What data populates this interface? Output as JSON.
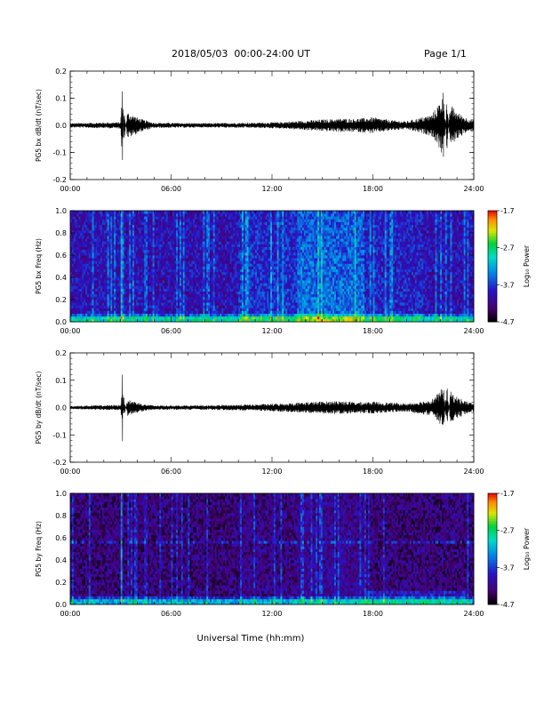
{
  "header": {
    "title": "2018/05/03  00:00-24:00 UT",
    "page": "Page 1/1"
  },
  "xlabel": "Universal Time (hh:mm)",
  "chart_data": [
    {
      "type": "line",
      "ylabel": "PG5 bx dB/dt (nT/sec)",
      "ylim": [
        -0.2,
        0.2
      ],
      "yticks": [
        "0.2",
        "0.1",
        "0.0",
        "-0.1",
        "-0.2"
      ],
      "xticks": [
        "00:00",
        "06:00",
        "12:00",
        "18:00",
        "24:00"
      ],
      "xlim_hours": [
        0,
        24
      ],
      "series": [
        {
          "color": "#000000",
          "x_hours": [
            0,
            3.0,
            3.05,
            3.1,
            3.15,
            3.2,
            3.4,
            3.7,
            4.0,
            4.4,
            5.0,
            8.0,
            11.0,
            12.5,
            14.0,
            16.0,
            17.0,
            18.0,
            19.0,
            20.0,
            21.5,
            22.0,
            22.2,
            22.4,
            22.6,
            23.0,
            23.5,
            24
          ],
          "amplitude": [
            0.008,
            0.012,
            0.1,
            -0.16,
            0.08,
            -0.06,
            0.05,
            0.04,
            0.03,
            0.02,
            0.01,
            0.008,
            0.01,
            0.012,
            0.018,
            0.025,
            0.025,
            0.03,
            0.02,
            0.015,
            0.04,
            0.09,
            0.13,
            -0.1,
            0.08,
            0.05,
            0.03,
            0.02
          ]
        }
      ]
    },
    {
      "type": "heatmap",
      "ylabel": "PG5 bx Freq (Hz)",
      "ylim": [
        0,
        1
      ],
      "yticks": [
        "1.0",
        "0.8",
        "0.6",
        "0.4",
        "0.2",
        "0.0"
      ],
      "xticks": [
        "00:00",
        "06:00",
        "12:00",
        "18:00",
        "24:00"
      ],
      "colorbar": {
        "label": "Log₁₀ Power",
        "ticks": [
          "-1.7",
          "-2.7",
          "-3.7",
          "-4.7"
        ],
        "range": [
          -4.7,
          -1.7
        ]
      }
    },
    {
      "type": "line",
      "ylabel": "PG5 by dB/dt (nT/sec)",
      "ylim": [
        -0.2,
        0.2
      ],
      "yticks": [
        "0.2",
        "0.1",
        "0.0",
        "-0.1",
        "-0.2"
      ],
      "xticks": [
        "00:00",
        "06:00",
        "12:00",
        "18:00",
        "24:00"
      ],
      "xlim_hours": [
        0,
        24
      ],
      "series": [
        {
          "color": "#000000",
          "x_hours": [
            0,
            3.0,
            3.05,
            3.1,
            3.15,
            3.2,
            3.4,
            3.7,
            4.0,
            4.4,
            5.0,
            8.0,
            11.0,
            12.5,
            14.0,
            16.0,
            17.0,
            18.0,
            19.0,
            20.0,
            21.5,
            22.0,
            22.2,
            22.4,
            22.6,
            23.0,
            23.5,
            24
          ],
          "amplitude": [
            0.006,
            0.01,
            0.07,
            -0.15,
            0.05,
            -0.04,
            0.03,
            0.025,
            0.02,
            0.012,
            0.008,
            0.008,
            0.012,
            0.015,
            0.02,
            0.025,
            0.02,
            0.022,
            0.018,
            0.015,
            0.03,
            0.06,
            0.085,
            -0.09,
            0.06,
            0.04,
            0.025,
            0.015
          ]
        }
      ]
    },
    {
      "type": "heatmap",
      "ylabel": "PG5 by Freq (Hz)",
      "ylim": [
        0,
        1
      ],
      "yticks": [
        "1.0",
        "0.8",
        "0.6",
        "0.4",
        "0.2",
        "0.0"
      ],
      "xticks": [
        "00:00",
        "06:00",
        "12:00",
        "18:00",
        "24:00"
      ],
      "colorbar": {
        "label": "Log₁₀ Power",
        "ticks": [
          "-1.7",
          "-2.7",
          "-3.7",
          "-4.7"
        ],
        "range": [
          -4.7,
          -1.7
        ]
      }
    }
  ]
}
